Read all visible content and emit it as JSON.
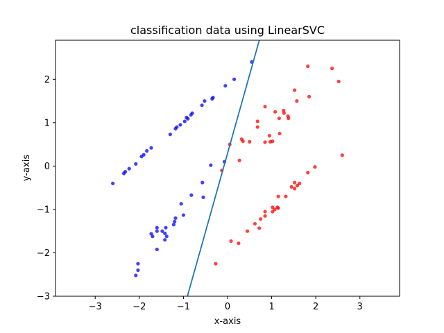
{
  "chart_data": {
    "type": "scatter",
    "title": "classification data using LinearSVC",
    "xlabel": "x-axis",
    "ylabel": "y-axis",
    "xlim": [
      -3.9,
      3.9
    ],
    "ylim": [
      -3,
      2.9
    ],
    "xticks": [
      -3,
      -2,
      -1,
      0,
      1,
      2,
      3
    ],
    "yticks": [
      -3,
      -2,
      -1,
      0,
      1,
      2
    ],
    "grid": false,
    "series": [
      {
        "color": "#0000ff",
        "points": [
          [
            -2.6,
            -0.4
          ],
          [
            -2.35,
            -0.17
          ],
          [
            -2.32,
            -0.13
          ],
          [
            -2.23,
            -0.06
          ],
          [
            -2.08,
            0.05
          ],
          [
            -1.95,
            0.22
          ],
          [
            -1.9,
            0.26
          ],
          [
            -1.83,
            0.35
          ],
          [
            -1.73,
            0.42
          ],
          [
            -1.3,
            0.73
          ],
          [
            -1.18,
            0.86
          ],
          [
            -1.15,
            0.9
          ],
          [
            -1.07,
            0.95
          ],
          [
            -0.97,
            1.03
          ],
          [
            -0.93,
            1.12
          ],
          [
            -0.9,
            1.09
          ],
          [
            -0.83,
            1.18
          ],
          [
            -0.8,
            1.22
          ],
          [
            -0.58,
            1.4
          ],
          [
            -0.52,
            1.5
          ],
          [
            -0.35,
            1.55
          ],
          [
            -0.33,
            1.58
          ],
          [
            -0.05,
            1.85
          ],
          [
            0.15,
            2.0
          ],
          [
            0.55,
            2.4
          ],
          [
            -0.38,
            0.02
          ],
          [
            -0.07,
            0.1
          ],
          [
            -0.57,
            -0.38
          ],
          [
            -0.55,
            -0.72
          ],
          [
            -0.82,
            -0.67
          ],
          [
            -1.05,
            -0.87
          ],
          [
            -1.0,
            -1.13
          ],
          [
            -1.18,
            -1.2
          ],
          [
            -1.2,
            -1.28
          ],
          [
            -1.22,
            -1.35
          ],
          [
            -1.4,
            -1.42
          ],
          [
            -1.48,
            -1.5
          ],
          [
            -1.6,
            -1.42
          ],
          [
            -1.6,
            -1.5
          ],
          [
            -1.42,
            -1.55
          ],
          [
            -1.38,
            -1.62
          ],
          [
            -1.42,
            -1.7
          ],
          [
            -1.73,
            -1.56
          ],
          [
            -1.7,
            -1.62
          ],
          [
            -1.6,
            -1.92
          ],
          [
            -2.03,
            -2.25
          ],
          [
            -2.03,
            -2.4
          ],
          [
            -2.08,
            -2.52
          ]
        ]
      },
      {
        "color": "#ff0000",
        "points": [
          [
            1.82,
            2.3
          ],
          [
            2.37,
            2.25
          ],
          [
            2.52,
            1.95
          ],
          [
            1.52,
            1.75
          ],
          [
            1.85,
            1.6
          ],
          [
            1.57,
            1.5
          ],
          [
            0.85,
            1.37
          ],
          [
            1.08,
            1.25
          ],
          [
            1.27,
            1.28
          ],
          [
            1.28,
            1.22
          ],
          [
            1.37,
            1.15
          ],
          [
            1.38,
            1.1
          ],
          [
            1.17,
            1.1
          ],
          [
            0.68,
            1.03
          ],
          [
            0.68,
            0.9
          ],
          [
            1.18,
            0.75
          ],
          [
            0.95,
            0.7
          ],
          [
            0.32,
            0.62
          ],
          [
            0.35,
            0.57
          ],
          [
            0.5,
            0.56
          ],
          [
            0.85,
            0.55
          ],
          [
            0.97,
            0.56
          ],
          [
            1.02,
            0.57
          ],
          [
            0.27,
            0.13
          ],
          [
            0.05,
            0.5
          ],
          [
            -0.13,
            -0.1
          ],
          [
            2.6,
            0.25
          ],
          [
            1.98,
            -0.02
          ],
          [
            1.82,
            -0.15
          ],
          [
            1.63,
            -0.4
          ],
          [
            1.52,
            -0.38
          ],
          [
            1.58,
            -0.45
          ],
          [
            1.45,
            -0.48
          ],
          [
            1.52,
            -0.52
          ],
          [
            1.32,
            -0.7
          ],
          [
            1.15,
            -0.7
          ],
          [
            1.02,
            -0.95
          ],
          [
            1.07,
            -1.0
          ],
          [
            1.13,
            -0.95
          ],
          [
            1.15,
            -0.97
          ],
          [
            1.02,
            -1.05
          ],
          [
            0.85,
            -1.05
          ],
          [
            0.85,
            -1.15
          ],
          [
            0.75,
            -1.22
          ],
          [
            0.62,
            -1.33
          ],
          [
            0.72,
            -1.43
          ],
          [
            0.45,
            -1.5
          ],
          [
            0.08,
            -1.73
          ],
          [
            0.25,
            -1.78
          ],
          [
            -0.27,
            -2.25
          ]
        ]
      }
    ],
    "decision_line": {
      "color": "#1f77b4",
      "from": [
        -0.91,
        -3.0
      ],
      "to": [
        0.72,
        2.9
      ]
    }
  }
}
